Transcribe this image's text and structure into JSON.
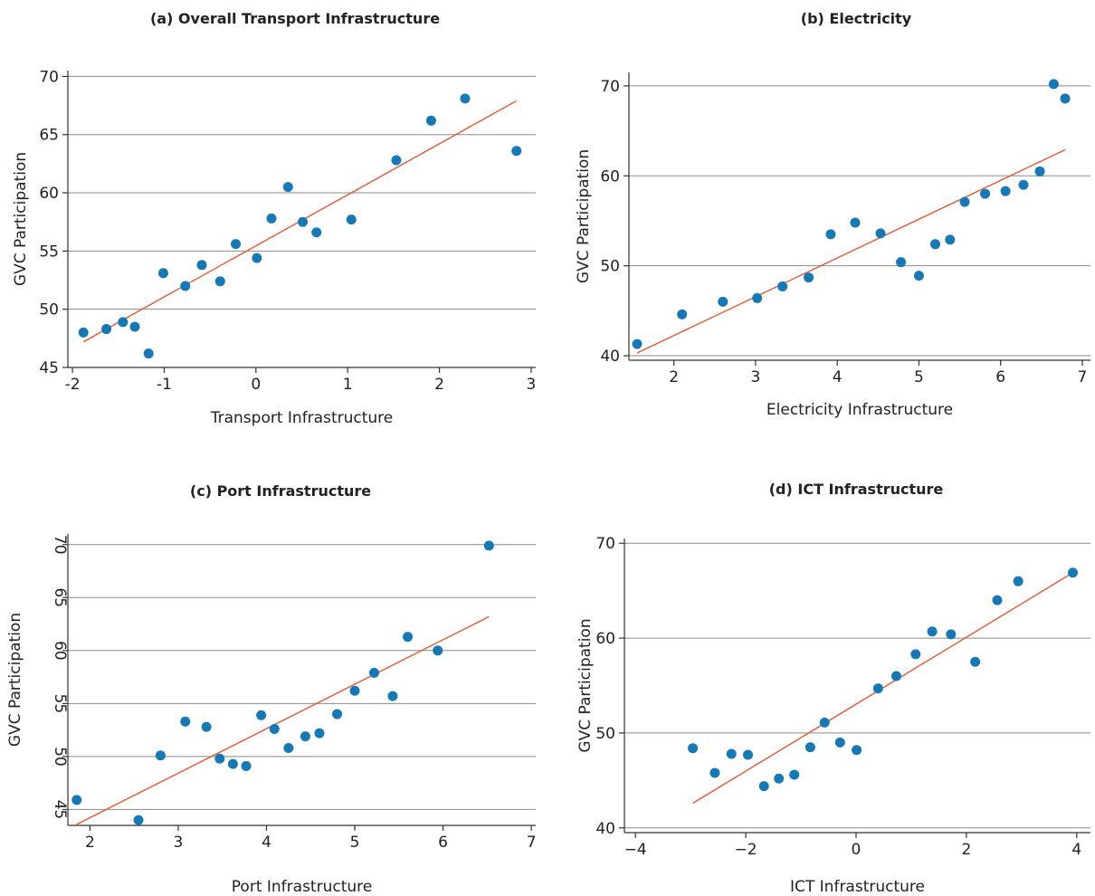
{
  "chart_data": [
    {
      "type": "scatter",
      "title": "(a) Overall Transport Infrastructure",
      "xlabel": "Transport Infrastructure",
      "ylabel": "GVC Participation",
      "xlim": [
        -2.05,
        3.05
      ],
      "ylim": [
        45,
        70.5
      ],
      "xticks": [
        -2,
        -1,
        0,
        1,
        2,
        3
      ],
      "xtick_labels": [
        "-2",
        "-1",
        "0",
        "1",
        "2",
        "3"
      ],
      "yticks": [
        45,
        50,
        55,
        60,
        65,
        70
      ],
      "ytick_labels": [
        "45",
        "50",
        "55",
        "60",
        "65",
        "70"
      ],
      "ytick_rotated": false,
      "grid": true,
      "points": [
        {
          "x": -1.88,
          "y": 48.0
        },
        {
          "x": -1.63,
          "y": 48.3
        },
        {
          "x": -1.45,
          "y": 48.9
        },
        {
          "x": -1.32,
          "y": 48.5
        },
        {
          "x": -1.17,
          "y": 46.2
        },
        {
          "x": -1.01,
          "y": 53.1
        },
        {
          "x": -0.77,
          "y": 52.0
        },
        {
          "x": -0.59,
          "y": 53.8
        },
        {
          "x": -0.39,
          "y": 52.4
        },
        {
          "x": -0.22,
          "y": 55.6
        },
        {
          "x": 0.01,
          "y": 54.4
        },
        {
          "x": 0.17,
          "y": 57.8
        },
        {
          "x": 0.35,
          "y": 60.5
        },
        {
          "x": 0.51,
          "y": 57.5
        },
        {
          "x": 0.66,
          "y": 56.6
        },
        {
          "x": 1.04,
          "y": 57.7
        },
        {
          "x": 1.53,
          "y": 62.8
        },
        {
          "x": 1.91,
          "y": 66.2
        },
        {
          "x": 2.28,
          "y": 68.1
        },
        {
          "x": 2.84,
          "y": 63.6
        }
      ],
      "fit": {
        "x1": -1.88,
        "y1": 47.2,
        "x2": 2.84,
        "y2": 67.9
      }
    },
    {
      "type": "scatter",
      "title": "(b) Electricity",
      "xlabel": "Electricity Infrastructure",
      "ylabel": "GVC Participation",
      "xlim": [
        1.45,
        7.1
      ],
      "ylim": [
        39.5,
        71.5
      ],
      "xticks": [
        2,
        3,
        4,
        5,
        6,
        7
      ],
      "xtick_labels": [
        "2",
        "3",
        "4",
        "5",
        "6",
        "7"
      ],
      "yticks": [
        40,
        50,
        60,
        70
      ],
      "ytick_labels": [
        "40",
        "50",
        "60",
        "70"
      ],
      "ytick_rotated": false,
      "grid": true,
      "points": [
        {
          "x": 1.55,
          "y": 41.3
        },
        {
          "x": 2.1,
          "y": 44.6
        },
        {
          "x": 2.6,
          "y": 46.0
        },
        {
          "x": 3.02,
          "y": 46.4
        },
        {
          "x": 3.33,
          "y": 47.7
        },
        {
          "x": 3.65,
          "y": 48.7
        },
        {
          "x": 3.92,
          "y": 53.5
        },
        {
          "x": 4.22,
          "y": 54.8
        },
        {
          "x": 4.53,
          "y": 53.6
        },
        {
          "x": 4.78,
          "y": 50.4
        },
        {
          "x": 5.0,
          "y": 48.9
        },
        {
          "x": 5.2,
          "y": 52.4
        },
        {
          "x": 5.38,
          "y": 52.9
        },
        {
          "x": 5.56,
          "y": 57.1
        },
        {
          "x": 5.81,
          "y": 58.0
        },
        {
          "x": 6.06,
          "y": 58.3
        },
        {
          "x": 6.28,
          "y": 59.0
        },
        {
          "x": 6.48,
          "y": 60.5
        },
        {
          "x": 6.65,
          "y": 70.2
        },
        {
          "x": 6.79,
          "y": 68.6
        }
      ],
      "fit": {
        "x1": 1.55,
        "y1": 40.3,
        "x2": 6.79,
        "y2": 62.9
      }
    },
    {
      "type": "scatter",
      "title": "(c) Port Infrastructure",
      "xlabel": "Port Infrastructure",
      "ylabel": "GVC Participation",
      "xlim": [
        1.75,
        7.05
      ],
      "ylim": [
        43.5,
        71
      ],
      "xticks": [
        2,
        3,
        4,
        5,
        6,
        7
      ],
      "xtick_labels": [
        "2",
        "3",
        "4",
        "5",
        "6",
        "7"
      ],
      "yticks": [
        45,
        50,
        55,
        60,
        65,
        70
      ],
      "ytick_labels": [
        "45",
        "50",
        "55",
        "60",
        "65",
        "70"
      ],
      "ytick_rotated": true,
      "grid": true,
      "points": [
        {
          "x": 1.85,
          "y": 45.9
        },
        {
          "x": 2.55,
          "y": 44.0
        },
        {
          "x": 2.8,
          "y": 50.1
        },
        {
          "x": 3.08,
          "y": 53.3
        },
        {
          "x": 3.32,
          "y": 52.8
        },
        {
          "x": 3.47,
          "y": 49.8
        },
        {
          "x": 3.62,
          "y": 49.3
        },
        {
          "x": 3.77,
          "y": 49.1
        },
        {
          "x": 3.94,
          "y": 53.9
        },
        {
          "x": 4.09,
          "y": 52.6
        },
        {
          "x": 4.25,
          "y": 50.8
        },
        {
          "x": 4.44,
          "y": 51.9
        },
        {
          "x": 4.6,
          "y": 52.2
        },
        {
          "x": 4.8,
          "y": 54.0
        },
        {
          "x": 5.0,
          "y": 56.2
        },
        {
          "x": 5.22,
          "y": 57.9
        },
        {
          "x": 5.43,
          "y": 55.7
        },
        {
          "x": 5.6,
          "y": 61.3
        },
        {
          "x": 5.94,
          "y": 60.0
        },
        {
          "x": 6.52,
          "y": 69.9
        }
      ],
      "fit": {
        "x1": 1.85,
        "y1": 43.6,
        "x2": 6.52,
        "y2": 63.2
      }
    },
    {
      "type": "scatter",
      "title": "(d) ICT Infrastructure",
      "xlabel": "ICT Infrastructure",
      "ylabel": "GVC Participation",
      "xlim": [
        -4.2,
        4.25
      ],
      "ylim": [
        39.5,
        70.5
      ],
      "xticks": [
        -4,
        -2,
        0,
        2,
        4
      ],
      "xtick_labels": [
        "−4",
        "−2",
        "0",
        "2",
        "4"
      ],
      "yticks": [
        40,
        50,
        60,
        70
      ],
      "ytick_labels": [
        "40",
        "50",
        "60",
        "70"
      ],
      "ytick_rotated": false,
      "grid": true,
      "points": [
        {
          "x": -2.96,
          "y": 48.4
        },
        {
          "x": -2.56,
          "y": 45.8
        },
        {
          "x": -2.26,
          "y": 47.8
        },
        {
          "x": -1.96,
          "y": 47.7
        },
        {
          "x": -1.67,
          "y": 44.4
        },
        {
          "x": -1.4,
          "y": 45.2
        },
        {
          "x": -1.12,
          "y": 45.6
        },
        {
          "x": -0.83,
          "y": 48.5
        },
        {
          "x": -0.57,
          "y": 51.1
        },
        {
          "x": -0.29,
          "y": 49.0
        },
        {
          "x": 0.01,
          "y": 48.2
        },
        {
          "x": 0.4,
          "y": 54.7
        },
        {
          "x": 0.73,
          "y": 56.0
        },
        {
          "x": 1.08,
          "y": 58.3
        },
        {
          "x": 1.38,
          "y": 60.7
        },
        {
          "x": 1.72,
          "y": 60.4
        },
        {
          "x": 2.16,
          "y": 57.5
        },
        {
          "x": 2.56,
          "y": 64.0
        },
        {
          "x": 2.94,
          "y": 66.0
        },
        {
          "x": 3.93,
          "y": 66.9
        }
      ],
      "fit": {
        "x1": -2.96,
        "y1": 42.6,
        "x2": 3.93,
        "y2": 66.9
      }
    }
  ]
}
